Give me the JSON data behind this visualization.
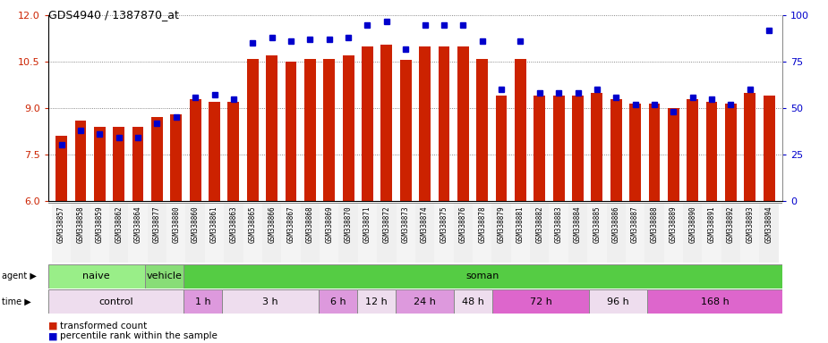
{
  "title": "GDS4940 / 1387870_at",
  "x_labels": [
    "GSM338857",
    "GSM338858",
    "GSM338859",
    "GSM338862",
    "GSM338864",
    "GSM338877",
    "GSM338880",
    "GSM338860",
    "GSM338861",
    "GSM338863",
    "GSM338865",
    "GSM338866",
    "GSM338867",
    "GSM338868",
    "GSM338869",
    "GSM338870",
    "GSM338871",
    "GSM338872",
    "GSM338873",
    "GSM338874",
    "GSM338875",
    "GSM338876",
    "GSM338878",
    "GSM338879",
    "GSM338881",
    "GSM338882",
    "GSM338883",
    "GSM338884",
    "GSM338885",
    "GSM338886",
    "GSM338887",
    "GSM338888",
    "GSM338889",
    "GSM338890",
    "GSM338891",
    "GSM338892",
    "GSM338893",
    "GSM338894"
  ],
  "bar_values": [
    8.1,
    8.6,
    8.4,
    8.4,
    8.4,
    8.7,
    8.8,
    9.3,
    9.2,
    9.2,
    10.6,
    10.7,
    10.5,
    10.6,
    10.6,
    10.7,
    11.0,
    11.05,
    10.55,
    11.0,
    11.0,
    11.0,
    10.6,
    9.4,
    10.6,
    9.4,
    9.4,
    9.4,
    9.5,
    9.3,
    9.15,
    9.15,
    9.0,
    9.3,
    9.2,
    9.15,
    9.5,
    9.4
  ],
  "dot_values": [
    30,
    38,
    36,
    34,
    34,
    42,
    45,
    56,
    57,
    55,
    85,
    88,
    86,
    87,
    87,
    88,
    95,
    97,
    82,
    95,
    95,
    95,
    86,
    60,
    86,
    58,
    58,
    58,
    60,
    56,
    52,
    52,
    48,
    56,
    55,
    52,
    60,
    92
  ],
  "bar_color": "#cc2200",
  "dot_color": "#0000cc",
  "ylim_left": [
    6,
    12
  ],
  "ylim_right": [
    0,
    100
  ],
  "yticks_left": [
    6,
    7.5,
    9,
    10.5,
    12
  ],
  "yticks_right": [
    0,
    25,
    50,
    75,
    100
  ],
  "agent_row": [
    {
      "label": "naive",
      "start": 0,
      "end": 5,
      "color": "#99ee88"
    },
    {
      "label": "vehicle",
      "start": 5,
      "end": 7,
      "color": "#88dd77"
    },
    {
      "label": "soman",
      "start": 7,
      "end": 38,
      "color": "#55cc44"
    }
  ],
  "time_row": [
    {
      "label": "control",
      "start": 0,
      "end": 7,
      "color": "#eeddee"
    },
    {
      "label": "1 h",
      "start": 7,
      "end": 9,
      "color": "#dd99dd"
    },
    {
      "label": "3 h",
      "start": 9,
      "end": 14,
      "color": "#eeddee"
    },
    {
      "label": "6 h",
      "start": 14,
      "end": 16,
      "color": "#dd99dd"
    },
    {
      "label": "12 h",
      "start": 16,
      "end": 18,
      "color": "#eeddee"
    },
    {
      "label": "24 h",
      "start": 18,
      "end": 21,
      "color": "#dd99dd"
    },
    {
      "label": "48 h",
      "start": 21,
      "end": 23,
      "color": "#eeddee"
    },
    {
      "label": "72 h",
      "start": 23,
      "end": 28,
      "color": "#dd66cc"
    },
    {
      "label": "96 h",
      "start": 28,
      "end": 31,
      "color": "#eeddee"
    },
    {
      "label": "168 h",
      "start": 31,
      "end": 38,
      "color": "#dd66cc"
    }
  ],
  "legend_items": [
    {
      "label": "transformed count",
      "color": "#cc2200"
    },
    {
      "label": "percentile rank within the sample",
      "color": "#0000cc"
    }
  ],
  "background_color": "#ffffff",
  "xtick_bg": "#dddddd",
  "border_color": "#888888"
}
